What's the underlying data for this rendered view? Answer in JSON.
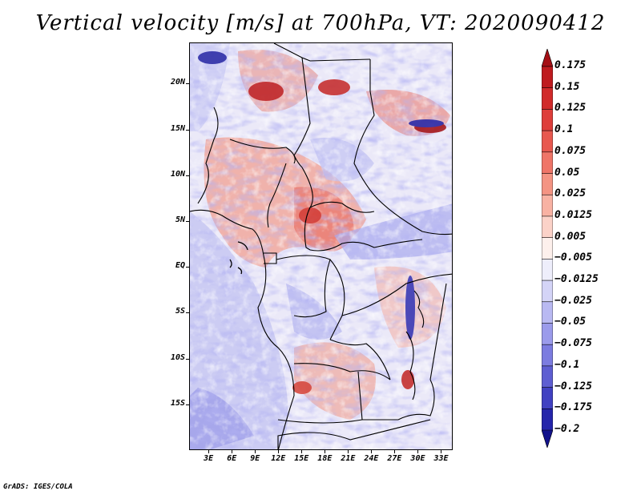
{
  "title": "Vertical velocity [m/s] at 700hPa, VT: 2020090412",
  "footer": "GrADS: IGES/COLA",
  "map": {
    "lat_labels": [
      "20N",
      "15N",
      "10N",
      "5N",
      "EQ",
      "5S",
      "10S",
      "15S"
    ],
    "lon_labels": [
      "3E",
      "6E",
      "9E",
      "12E",
      "15E",
      "18E",
      "21E",
      "24E",
      "27E",
      "30E",
      "33E"
    ],
    "lat_values": [
      20,
      15,
      10,
      5,
      0,
      -5,
      -10,
      -15
    ],
    "lon_values": [
      3,
      6,
      9,
      12,
      15,
      18,
      21,
      24,
      27,
      30,
      33
    ],
    "lon_range": [
      0.5,
      34.5
    ],
    "lat_range": [
      -20,
      24.5
    ]
  },
  "colorbar": {
    "labels": [
      "0.175",
      "0.15",
      "0.125",
      "0.1",
      "0.075",
      "0.05",
      "0.025",
      "0.0125",
      "0.005",
      "−0.005",
      "−0.0125",
      "−0.025",
      "−0.05",
      "−0.075",
      "−0.1",
      "−0.125",
      "−0.175",
      "−0.2"
    ],
    "colors": [
      "#a50f15",
      "#bf1b1f",
      "#d12a2a",
      "#de3e3b",
      "#e8584f",
      "#ef7568",
      "#f49483",
      "#f8b2a3",
      "#fbd2c8",
      "#fdf0ec",
      "#eeeefb",
      "#d4d4f7",
      "#b9b9f2",
      "#9b9beb",
      "#7c7ce0",
      "#5e5ed2",
      "#4141c2",
      "#2525ab",
      "#12128c"
    ]
  }
}
